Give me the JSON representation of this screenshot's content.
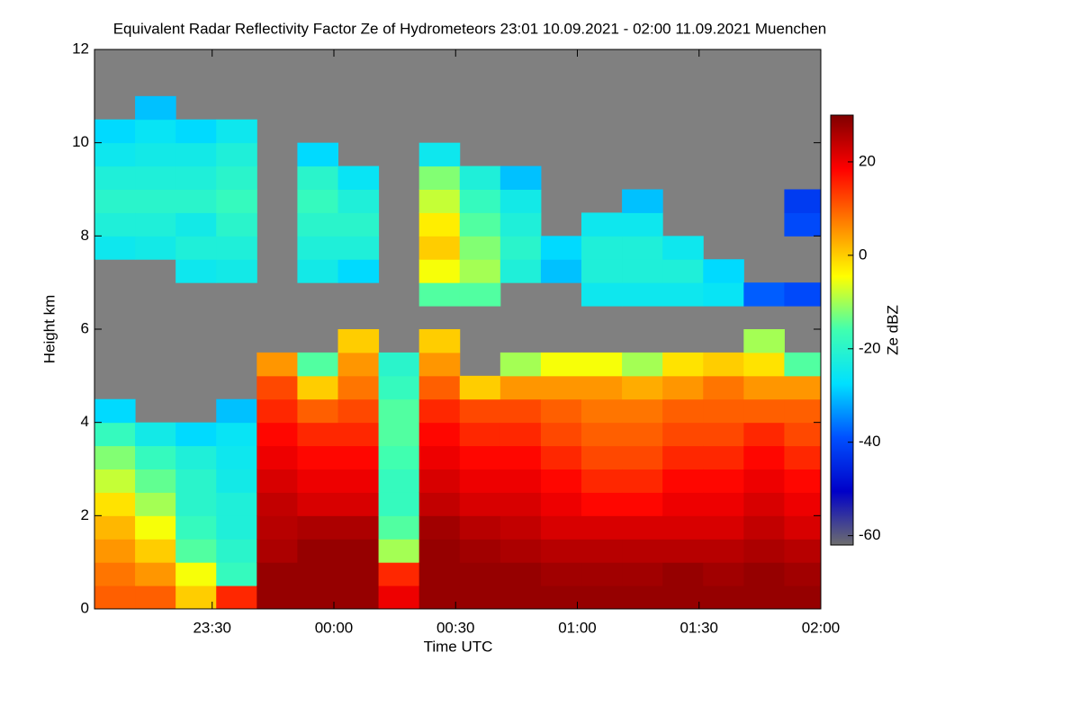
{
  "chart_data": {
    "type": "heatmap",
    "title": "Equivalent Radar Reflectivity Factor Ze of Hydrometeors   23:01 10.09.2021 - 02:00 11.09.2021 Muenchen",
    "xlabel": "Time UTC",
    "ylabel": "Height km",
    "colorbar_label": "Ze dBZ",
    "x": [
      -54,
      -44,
      -34,
      -24,
      -14,
      -4,
      6,
      16,
      26,
      36,
      46,
      56,
      66,
      76,
      86,
      96,
      106,
      116
    ],
    "y": [
      0.25,
      0.75,
      1.25,
      1.75,
      2.25,
      2.75,
      3.25,
      3.75,
      4.25,
      4.75,
      5.25,
      5.75,
      6.25,
      6.75,
      7.25,
      7.75,
      8.25,
      8.75,
      9.25,
      9.75,
      10.25,
      10.75,
      11.25,
      11.75
    ],
    "z": [
      [
        10,
        8,
        5,
        2,
        -2,
        -8,
        -12,
        -18,
        -28,
        null,
        null,
        null,
        null,
        null,
        null,
        -25,
        -22,
        -20,
        -22,
        -25,
        -28,
        null,
        null,
        null
      ],
      [
        10,
        5,
        0,
        -5,
        -10,
        -14,
        -18,
        -24,
        null,
        null,
        null,
        null,
        null,
        null,
        null,
        -24,
        -22,
        -20,
        -22,
        -24,
        -26,
        -30,
        null,
        null
      ],
      [
        0,
        -5,
        -15,
        -18,
        -20,
        -20,
        -22,
        -28,
        null,
        null,
        null,
        null,
        null,
        null,
        -25,
        -22,
        -24,
        -20,
        -22,
        -24,
        -28,
        null,
        null,
        null
      ],
      [
        15,
        -18,
        -20,
        -22,
        -22,
        -24,
        -25,
        -26,
        -30,
        null,
        null,
        null,
        null,
        null,
        -24,
        -22,
        -20,
        -18,
        -20,
        -22,
        -25,
        null,
        null,
        null
      ],
      [
        28,
        28,
        26,
        25,
        24,
        22,
        20,
        18,
        15,
        12,
        5,
        null,
        null,
        null,
        null,
        null,
        null,
        null,
        null,
        null,
        null,
        null,
        null,
        null
      ],
      [
        28,
        28,
        28,
        26,
        22,
        20,
        18,
        15,
        10,
        0,
        -15,
        null,
        null,
        null,
        -24,
        -22,
        -20,
        -18,
        -20,
        -28,
        null,
        null,
        null,
        null
      ],
      [
        28,
        28,
        28,
        26,
        22,
        20,
        18,
        15,
        12,
        8,
        5,
        0,
        null,
        null,
        -28,
        -22,
        -20,
        -22,
        -26,
        null,
        null,
        null,
        null,
        null
      ],
      [
        20,
        15,
        -10,
        -15,
        -18,
        -18,
        -16,
        -15,
        -15,
        -18,
        -20,
        null,
        null,
        null,
        null,
        null,
        null,
        null,
        null,
        null,
        null,
        null,
        null,
        null
      ],
      [
        28,
        28,
        28,
        27,
        24,
        22,
        20,
        18,
        15,
        10,
        5,
        0,
        null,
        -15,
        -5,
        0,
        -3,
        -8,
        -12,
        -25,
        null,
        null,
        null,
        null
      ],
      [
        28,
        28,
        27,
        25,
        22,
        20,
        18,
        15,
        12,
        0,
        null,
        null,
        null,
        -15,
        -10,
        -12,
        -15,
        -18,
        -22,
        null,
        null,
        null,
        null,
        null
      ],
      [
        28,
        28,
        26,
        24,
        22,
        20,
        18,
        15,
        12,
        5,
        -10,
        null,
        null,
        null,
        -22,
        -20,
        -22,
        -24,
        -30,
        null,
        null,
        null,
        null,
        null
      ],
      [
        28,
        27,
        25,
        22,
        20,
        18,
        15,
        12,
        10,
        5,
        -5,
        null,
        null,
        null,
        -30,
        -28,
        null,
        null,
        null,
        null,
        null,
        null,
        null,
        null
      ],
      [
        28,
        27,
        25,
        22,
        18,
        15,
        12,
        10,
        8,
        5,
        -5,
        null,
        null,
        -25,
        -22,
        -22,
        -25,
        null,
        null,
        null,
        null,
        null,
        null,
        null
      ],
      [
        28,
        27,
        25,
        22,
        18,
        15,
        12,
        10,
        8,
        3,
        -10,
        null,
        null,
        -25,
        -22,
        -22,
        -25,
        -30,
        null,
        null,
        null,
        null,
        null,
        null
      ],
      [
        28,
        28,
        25,
        22,
        20,
        18,
        15,
        12,
        10,
        5,
        -2,
        null,
        null,
        -25,
        -22,
        -25,
        null,
        null,
        null,
        null,
        null,
        null,
        null,
        null
      ],
      [
        28,
        27,
        25,
        22,
        20,
        18,
        15,
        12,
        10,
        8,
        0,
        null,
        null,
        -26,
        -28,
        null,
        null,
        null,
        null,
        null,
        null,
        null,
        null,
        null
      ],
      [
        28,
        28,
        26,
        24,
        22,
        20,
        18,
        15,
        10,
        5,
        -2,
        -10,
        null,
        -38,
        null,
        null,
        null,
        null,
        null,
        null,
        null,
        null,
        null,
        null
      ],
      [
        28,
        27,
        25,
        22,
        20,
        18,
        15,
        12,
        10,
        5,
        -15,
        null,
        null,
        -40,
        null,
        null,
        -40,
        -42,
        null,
        null,
        null,
        null,
        null,
        null
      ]
    ],
    "xlim": [
      -59,
      120
    ],
    "xticks": [
      {
        "value": -30,
        "label": "23:30"
      },
      {
        "value": 0,
        "label": "00:00"
      },
      {
        "value": 30,
        "label": "00:30"
      },
      {
        "value": 60,
        "label": "01:00"
      },
      {
        "value": 90,
        "label": "01:30"
      },
      {
        "value": 120,
        "label": "02:00"
      }
    ],
    "ylim": [
      0,
      12
    ],
    "yticks": [
      0,
      2,
      4,
      6,
      8,
      10,
      12
    ],
    "clim": [
      -62,
      30
    ],
    "cticks": [
      -60,
      -40,
      -20,
      0,
      20
    ],
    "colors": [
      "#6e6e6e",
      "#0000c8",
      "#0050ff",
      "#00e0ff",
      "#40ffb0",
      "#ffff00",
      "#ff8000",
      "#ff0000",
      "#800000"
    ],
    "missing_color": "#808080"
  }
}
